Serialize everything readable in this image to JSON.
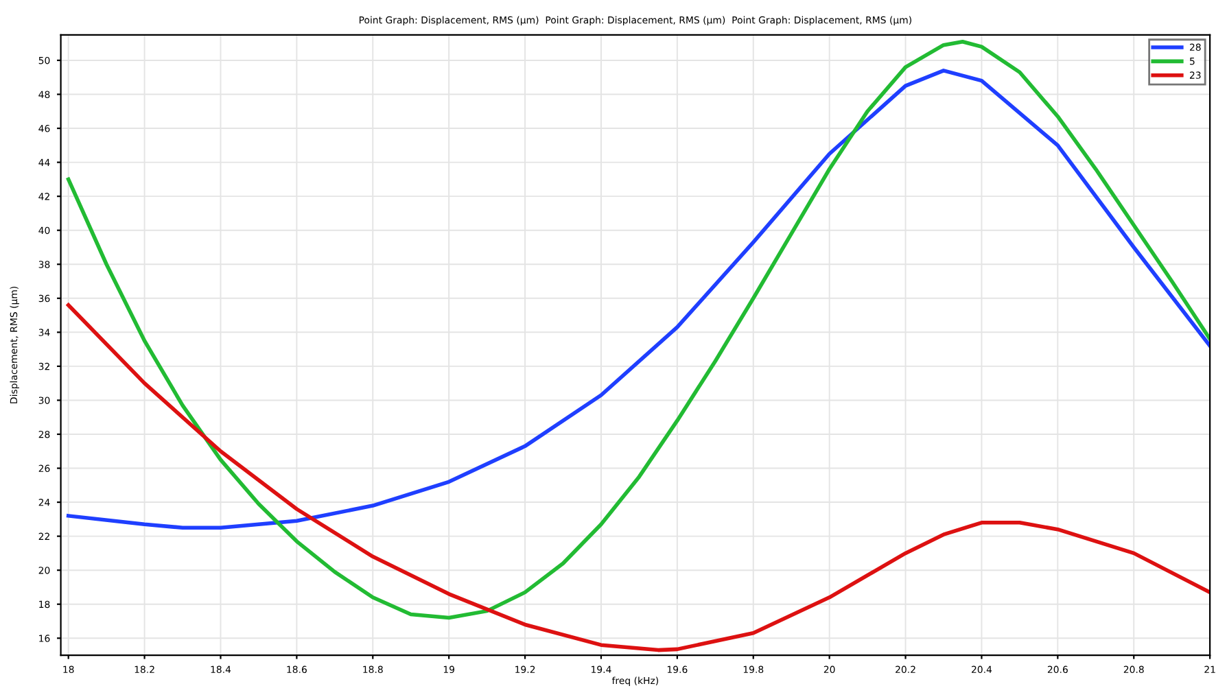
{
  "chart_data": {
    "type": "line",
    "title": "Point Graph: Displacement, RMS (μm)  Point Graph: Displacement, RMS (μm)  Point Graph: Displacement, RMS (μm)",
    "xlabel": "freq (kHz)",
    "ylabel": "Displacement, RMS (μm)",
    "xlim": [
      17.98,
      21.0
    ],
    "ylim": [
      15.0,
      51.5
    ],
    "xticks": [
      18,
      18.2,
      18.4,
      18.6,
      18.8,
      19,
      19.2,
      19.4,
      19.6,
      19.8,
      20,
      20.2,
      20.4,
      20.6,
      20.8,
      21
    ],
    "yticks": [
      16,
      18,
      20,
      22,
      24,
      26,
      28,
      30,
      32,
      34,
      36,
      38,
      40,
      42,
      44,
      46,
      48,
      50
    ],
    "grid": true,
    "legend": "top right",
    "marker": "none",
    "line_style": "solid",
    "series": [
      {
        "name": "28",
        "color": "#1f3fff",
        "x": [
          18,
          18.2,
          18.3,
          18.4,
          18.6,
          18.8,
          19,
          19.2,
          19.4,
          19.6,
          19.8,
          20,
          20.2,
          20.3,
          20.4,
          20.6,
          20.8,
          21
        ],
        "values": [
          23.2,
          22.7,
          22.5,
          22.5,
          22.9,
          23.8,
          25.2,
          27.3,
          30.3,
          34.3,
          39.3,
          44.5,
          48.5,
          49.4,
          48.8,
          45.0,
          39.0,
          33.2
        ]
      },
      {
        "name": "5",
        "color": "#22bb33",
        "x": [
          18,
          18.1,
          18.2,
          18.3,
          18.4,
          18.5,
          18.6,
          18.7,
          18.8,
          18.9,
          19,
          19.1,
          19.2,
          19.3,
          19.4,
          19.5,
          19.6,
          19.7,
          19.8,
          19.9,
          20,
          20.1,
          20.2,
          20.3,
          20.35,
          20.4,
          20.5,
          20.6,
          20.7,
          20.8,
          20.9,
          21
        ],
        "values": [
          43,
          38,
          33.5,
          29.7,
          26.5,
          23.9,
          21.7,
          19.9,
          18.4,
          17.4,
          17.2,
          17.6,
          18.7,
          20.4,
          22.7,
          25.5,
          28.8,
          32.3,
          36.0,
          39.8,
          43.6,
          47,
          49.6,
          50.9,
          51.1,
          50.8,
          49.3,
          46.7,
          43.6,
          40.3,
          37,
          33.6
        ]
      },
      {
        "name": "23",
        "color": "#dd1111",
        "x": [
          18,
          18.2,
          18.4,
          18.6,
          18.8,
          19,
          19.2,
          19.4,
          19.55,
          19.6,
          19.8,
          20,
          20.2,
          20.3,
          20.4,
          20.5,
          20.6,
          20.8,
          21
        ],
        "values": [
          35.6,
          31,
          27,
          23.6,
          20.8,
          18.6,
          16.8,
          15.6,
          15.3,
          15.35,
          16.3,
          18.4,
          21,
          22.1,
          22.8,
          22.8,
          22.4,
          21.0,
          18.7
        ]
      }
    ]
  }
}
